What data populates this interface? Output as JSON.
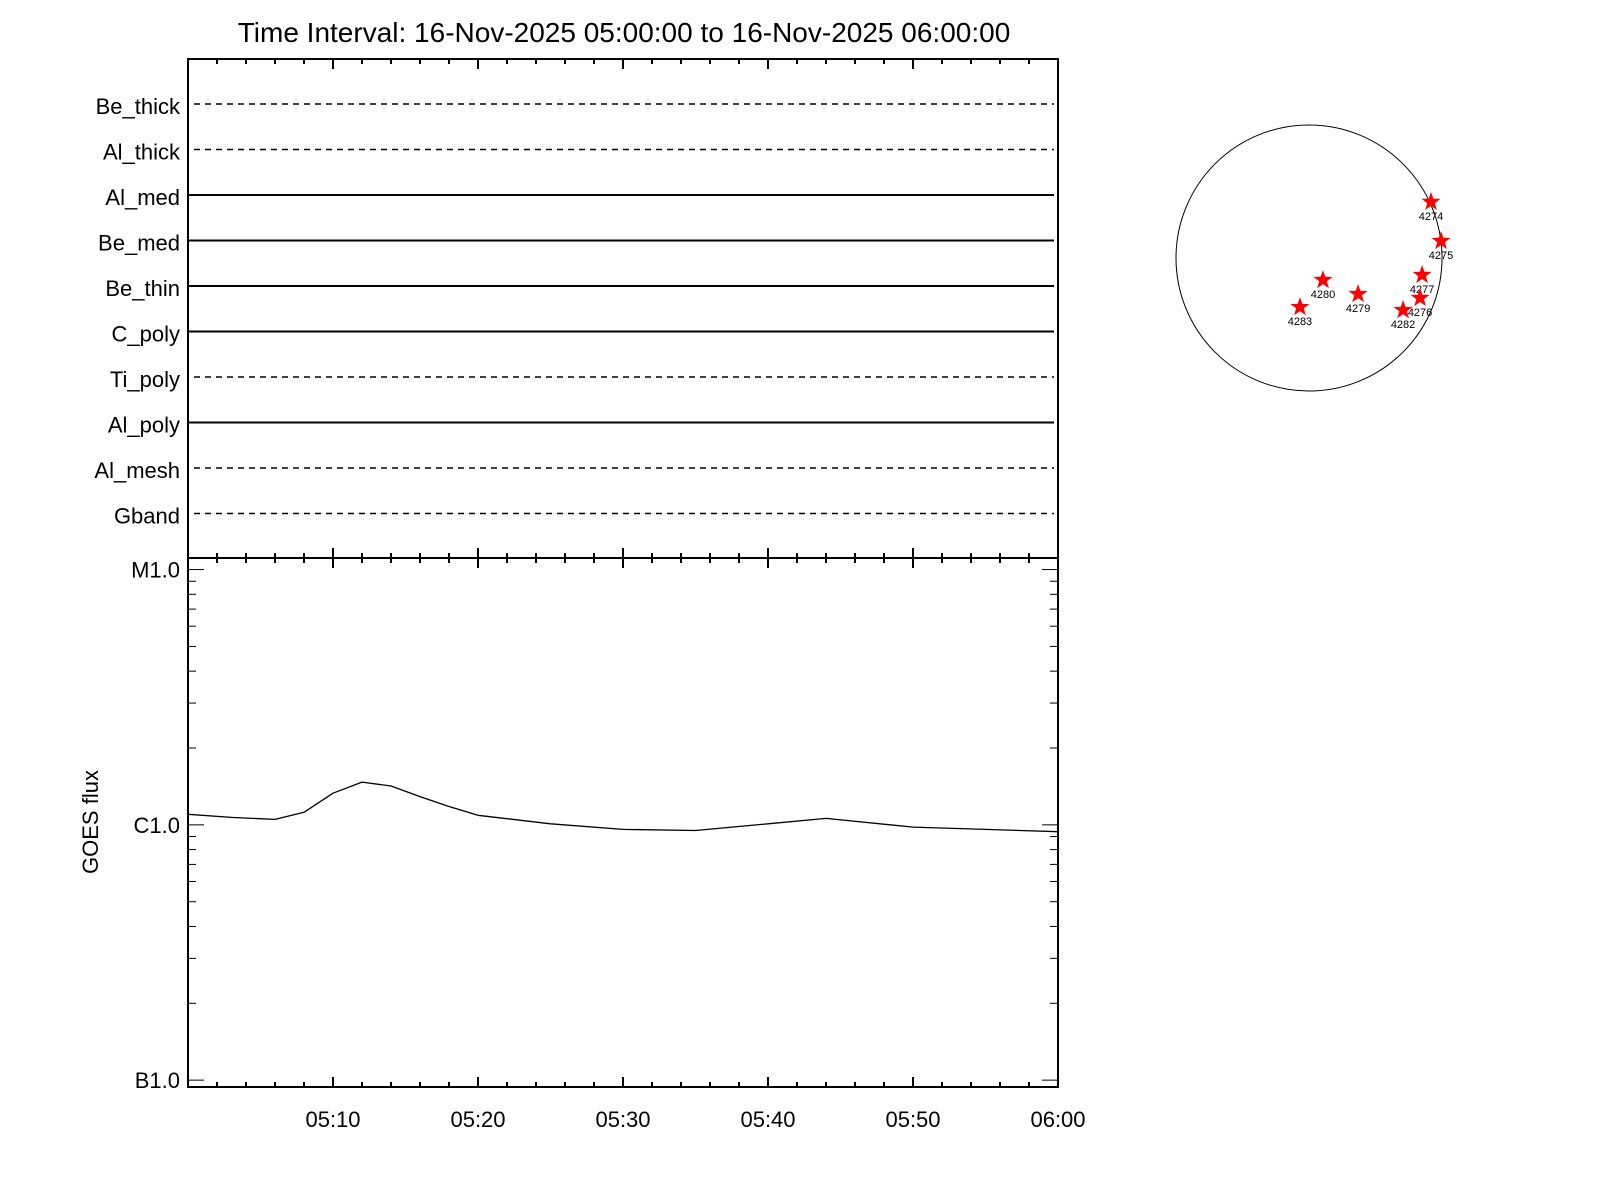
{
  "title": "Time Interval: 16-Nov-2025 05:00:00 to 16-Nov-2025 06:00:00",
  "chart_data": [
    {
      "type": "table",
      "panel": "channel status",
      "channels": [
        {
          "name": "Be_thick",
          "style": "dashed"
        },
        {
          "name": "Al_thick",
          "style": "dashed"
        },
        {
          "name": "Al_med",
          "style": "solid"
        },
        {
          "name": "Be_med",
          "style": "solid"
        },
        {
          "name": "Be_thin",
          "style": "solid"
        },
        {
          "name": "C_poly",
          "style": "solid"
        },
        {
          "name": "Ti_poly",
          "style": "dashed"
        },
        {
          "name": "Al_poly",
          "style": "solid"
        },
        {
          "name": "Al_mesh",
          "style": "dashed"
        },
        {
          "name": "Gband",
          "style": "dashed"
        }
      ]
    },
    {
      "type": "line",
      "ylabel": "GOES flux",
      "yscale": "log",
      "ylim": [
        9.4e-08,
        1.11e-05
      ],
      "yticks": [
        {
          "value": 1e-05,
          "label": "M1.0"
        },
        {
          "value": 1e-06,
          "label": "C1.0"
        },
        {
          "value": 1e-07,
          "label": "B1.0"
        }
      ],
      "xlim": [
        "05:00",
        "06:00"
      ],
      "xticks": [
        "05:10",
        "05:20",
        "05:30",
        "05:40",
        "05:50",
        "06:00"
      ],
      "grid": false,
      "series": [
        {
          "color": "#000000",
          "x": [
            "05:00",
            "05:03",
            "05:06",
            "05:08",
            "05:10",
            "05:12",
            "05:14",
            "05:16",
            "05:18",
            "05:20",
            "05:25",
            "05:30",
            "05:35",
            "05:40",
            "05:44",
            "05:50",
            "05:55",
            "06:00"
          ],
          "y": [
            1.1e-06,
            1.07e-06,
            1.05e-06,
            1.12e-06,
            1.33e-06,
            1.47e-06,
            1.42e-06,
            1.29e-06,
            1.18e-06,
            1.09e-06,
            1.01e-06,
            9.6e-07,
            9.5e-07,
            1.01e-06,
            1.06e-06,
            9.8e-07,
            9.6e-07,
            9.4e-07
          ]
        }
      ]
    },
    {
      "type": "scatter",
      "panel": "solar disk active regions",
      "marker_color": "#ff0000",
      "points": [
        {
          "label": "4274",
          "x": 890,
          "y": 409
        },
        {
          "label": "4275",
          "x": 963,
          "y": 124
        },
        {
          "label": "4277",
          "x": 825,
          "y": -124
        },
        {
          "label": "4276",
          "x": 810,
          "y": -292
        },
        {
          "label": "4282",
          "x": 686,
          "y": -380
        },
        {
          "label": "4279",
          "x": 358,
          "y": -263
        },
        {
          "label": "4280",
          "x": 102,
          "y": -161
        },
        {
          "label": "4283",
          "x": -66,
          "y": -358
        }
      ]
    }
  ]
}
